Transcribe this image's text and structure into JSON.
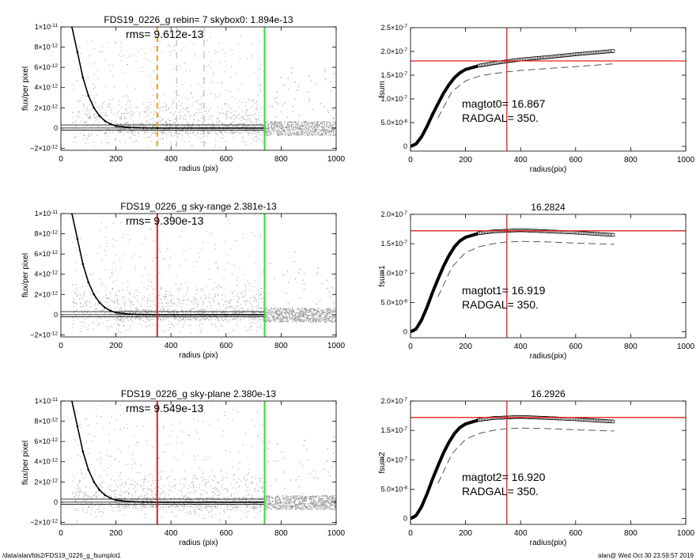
{
  "footer": {
    "left": "/data/alan/fds2/FDS19_0226_g_fsumplot1",
    "right": "alan@  Wed Oct 30 23:59:57 2019"
  },
  "colors": {
    "scatter": "#999999",
    "profile": "#000000",
    "orange": "#ff9900",
    "green": "#33dd33",
    "red": "#dd2222",
    "dashed": "#555555"
  },
  "chart_data": [
    {
      "id": "flux-0",
      "type": "scatter",
      "title": "FDS19_0226_g rebin= 7    skybox0:  1.894e-13",
      "annotation": "rms= 9.612e-13",
      "xlabel": "radius (pix)",
      "ylabel": "flux/per pixel",
      "xlim": [
        0,
        1000
      ],
      "ylim": [
        -2.2e-12,
        1e-11
      ],
      "xticks": [
        0,
        200,
        400,
        600,
        800,
        1000
      ],
      "xtick_labels": [
        "0",
        "200",
        "400",
        "600",
        "800",
        "1000"
      ],
      "yticks": [
        -2e-12,
        0,
        2e-12,
        4e-12,
        6e-12,
        8e-12,
        1e-11
      ],
      "ytick_labels": [
        {
          "m": "−2×10",
          "e": "-12"
        },
        {
          "m": "0",
          "e": ""
        },
        {
          "m": "2×10",
          "e": "-12"
        },
        {
          "m": "4×10",
          "e": "-12"
        },
        {
          "m": "6×10",
          "e": "-12"
        },
        {
          "m": "8×10",
          "e": "-12"
        },
        {
          "m": "1×10",
          "e": "-11"
        }
      ],
      "profile": [
        [
          40,
          1e-11
        ],
        [
          60,
          7.5e-12
        ],
        [
          80,
          5e-12
        ],
        [
          100,
          3.2e-12
        ],
        [
          120,
          2e-12
        ],
        [
          140,
          1.2e-12
        ],
        [
          160,
          7e-13
        ],
        [
          180,
          4e-13
        ],
        [
          200,
          2e-13
        ],
        [
          250,
          5e-14
        ],
        [
          300,
          1e-14
        ],
        [
          350,
          0
        ],
        [
          740,
          0
        ]
      ],
      "hlines": [
        0,
        3e-13,
        -2e-13
      ],
      "vlines": [
        {
          "x": 350,
          "color": "orange",
          "dashed": true
        },
        {
          "x": 740,
          "color": "green",
          "dashed": false
        }
      ],
      "gray_vlines": [
        420,
        520
      ]
    },
    {
      "id": "fsum-0",
      "type": "line",
      "title": "",
      "annotation_lines": [
        "magtot0=  16.867",
        "RADGAL=    350."
      ],
      "xlabel": "radius(pix)",
      "ylabel": "fsum",
      "xlim": [
        0,
        1000
      ],
      "ylim": [
        -1e-08,
        2.5e-07
      ],
      "xticks": [
        0,
        200,
        400,
        600,
        800,
        1000
      ],
      "xtick_labels": [
        "0",
        "200",
        "400",
        "600",
        "800",
        "1000"
      ],
      "yticks": [
        0,
        5e-08,
        1e-07,
        1.5e-07,
        2e-07,
        2.5e-07
      ],
      "ytick_labels": [
        {
          "m": "0",
          "e": ""
        },
        {
          "m": "5.0×10",
          "e": "-8"
        },
        {
          "m": "1.0×10",
          "e": "-7"
        },
        {
          "m": "1.5×10",
          "e": "-7"
        },
        {
          "m": "2.0×10",
          "e": "-7"
        },
        {
          "m": "2.5×10",
          "e": "-7"
        }
      ],
      "curve": [
        [
          0,
          0
        ],
        [
          20,
          5e-09
        ],
        [
          40,
          2e-08
        ],
        [
          60,
          4.2e-08
        ],
        [
          80,
          6.7e-08
        ],
        [
          100,
          9e-08
        ],
        [
          120,
          1.12e-07
        ],
        [
          140,
          1.3e-07
        ],
        [
          160,
          1.45e-07
        ],
        [
          180,
          1.55e-07
        ],
        [
          200,
          1.62e-07
        ],
        [
          250,
          1.7e-07
        ],
        [
          300,
          1.75e-07
        ],
        [
          350,
          1.79e-07
        ],
        [
          400,
          1.83e-07
        ],
        [
          500,
          1.88e-07
        ],
        [
          600,
          1.94e-07
        ],
        [
          700,
          1.99e-07
        ],
        [
          740,
          2.01e-07
        ]
      ],
      "dashed": [
        [
          100,
          6e-08
        ],
        [
          150,
          1.15e-07
        ],
        [
          200,
          1.38e-07
        ],
        [
          250,
          1.48e-07
        ],
        [
          300,
          1.53e-07
        ],
        [
          350,
          1.57e-07
        ],
        [
          400,
          1.6e-07
        ],
        [
          500,
          1.64e-07
        ],
        [
          600,
          1.68e-07
        ],
        [
          740,
          1.74e-07
        ]
      ],
      "hline": 1.8e-07,
      "vline": 350
    },
    {
      "id": "flux-1",
      "type": "scatter",
      "title": "FDS19_0226_g sky-range  2.381e-13",
      "annotation": "rms= 9.390e-13",
      "xlabel": "radius (pix)",
      "ylabel": "flux/per pixel",
      "xlim": [
        0,
        1000
      ],
      "ylim": [
        -2.2e-12,
        1e-11
      ],
      "xticks": [
        0,
        200,
        400,
        600,
        800,
        1000
      ],
      "xtick_labels": [
        "0",
        "200",
        "400",
        "600",
        "800",
        "1000"
      ],
      "yticks": [
        -2e-12,
        0,
        2e-12,
        4e-12,
        6e-12,
        8e-12,
        1e-11
      ],
      "ytick_labels": [
        {
          "m": "−2×10",
          "e": "-12"
        },
        {
          "m": "0",
          "e": ""
        },
        {
          "m": "2×10",
          "e": "-12"
        },
        {
          "m": "4×10",
          "e": "-12"
        },
        {
          "m": "6×10",
          "e": "-12"
        },
        {
          "m": "8×10",
          "e": "-12"
        },
        {
          "m": "1×10",
          "e": "-11"
        }
      ],
      "profile": [
        [
          40,
          1e-11
        ],
        [
          60,
          7.5e-12
        ],
        [
          80,
          5e-12
        ],
        [
          100,
          3.2e-12
        ],
        [
          120,
          2e-12
        ],
        [
          140,
          1.2e-12
        ],
        [
          160,
          7e-13
        ],
        [
          180,
          4e-13
        ],
        [
          200,
          2e-13
        ],
        [
          250,
          5e-14
        ],
        [
          300,
          1e-14
        ],
        [
          350,
          0
        ],
        [
          740,
          0
        ]
      ],
      "hlines": [
        0,
        3e-13,
        -2e-13
      ],
      "vlines": [
        {
          "x": 350,
          "color": "red",
          "dashed": false
        },
        {
          "x": 740,
          "color": "green",
          "dashed": false
        }
      ],
      "gray_vlines": []
    },
    {
      "id": "fsum-1",
      "type": "line",
      "title": "16.2824",
      "annotation_lines": [
        "magtot1=  16.919",
        "RADGAL=    350."
      ],
      "xlabel": "radius(pix)",
      "ylabel": "fsum1",
      "xlim": [
        0,
        1000
      ],
      "ylim": [
        -1e-08,
        2e-07
      ],
      "xticks": [
        0,
        200,
        400,
        600,
        800,
        1000
      ],
      "xtick_labels": [
        "0",
        "200",
        "400",
        "600",
        "800",
        "1000"
      ],
      "yticks": [
        0,
        5e-08,
        1e-07,
        1.5e-07,
        2e-07
      ],
      "ytick_labels": [
        {
          "m": "0",
          "e": ""
        },
        {
          "m": "5.0×10",
          "e": "-8"
        },
        {
          "m": "1.0×10",
          "e": "-7"
        },
        {
          "m": "1.5×10",
          "e": "-7"
        },
        {
          "m": "2.0×10",
          "e": "-7"
        }
      ],
      "curve": [
        [
          0,
          0
        ],
        [
          20,
          5e-09
        ],
        [
          40,
          2e-08
        ],
        [
          60,
          4.2e-08
        ],
        [
          80,
          6.7e-08
        ],
        [
          100,
          9e-08
        ],
        [
          120,
          1.12e-07
        ],
        [
          140,
          1.3e-07
        ],
        [
          160,
          1.45e-07
        ],
        [
          180,
          1.55e-07
        ],
        [
          200,
          1.61e-07
        ],
        [
          250,
          1.68e-07
        ],
        [
          300,
          1.71e-07
        ],
        [
          350,
          1.72e-07
        ],
        [
          400,
          1.73e-07
        ],
        [
          500,
          1.71e-07
        ],
        [
          600,
          1.69e-07
        ],
        [
          700,
          1.66e-07
        ],
        [
          740,
          1.65e-07
        ]
      ],
      "dashed": [
        [
          100,
          6e-08
        ],
        [
          150,
          1.1e-07
        ],
        [
          200,
          1.35e-07
        ],
        [
          250,
          1.45e-07
        ],
        [
          300,
          1.5e-07
        ],
        [
          350,
          1.53e-07
        ],
        [
          400,
          1.54e-07
        ],
        [
          500,
          1.53e-07
        ],
        [
          600,
          1.51e-07
        ],
        [
          740,
          1.49e-07
        ]
      ],
      "hline": 1.72e-07,
      "vline": 350
    },
    {
      "id": "flux-2",
      "type": "scatter",
      "title": "FDS19_0226_g sky-plane  2.380e-13",
      "annotation": "rms= 9.549e-13",
      "xlabel": "radius (pix)",
      "ylabel": "flux/per pixel",
      "xlim": [
        0,
        1000
      ],
      "ylim": [
        -2.2e-12,
        1e-11
      ],
      "xticks": [
        0,
        200,
        400,
        600,
        800,
        1000
      ],
      "xtick_labels": [
        "0",
        "200",
        "400",
        "600",
        "800",
        "1000"
      ],
      "yticks": [
        -2e-12,
        0,
        2e-12,
        4e-12,
        6e-12,
        8e-12,
        1e-11
      ],
      "ytick_labels": [
        {
          "m": "−2×10",
          "e": "-12"
        },
        {
          "m": "0",
          "e": ""
        },
        {
          "m": "2×10",
          "e": "-12"
        },
        {
          "m": "4×10",
          "e": "-12"
        },
        {
          "m": "6×10",
          "e": "-12"
        },
        {
          "m": "8×10",
          "e": "-12"
        },
        {
          "m": "1×10",
          "e": "-11"
        }
      ],
      "profile": [
        [
          40,
          1e-11
        ],
        [
          60,
          7.5e-12
        ],
        [
          80,
          5e-12
        ],
        [
          100,
          3.2e-12
        ],
        [
          120,
          2e-12
        ],
        [
          140,
          1.2e-12
        ],
        [
          160,
          7e-13
        ],
        [
          180,
          4e-13
        ],
        [
          200,
          2e-13
        ],
        [
          250,
          5e-14
        ],
        [
          300,
          1e-14
        ],
        [
          350,
          0
        ],
        [
          740,
          0
        ]
      ],
      "hlines": [
        0,
        3e-13,
        -2e-13
      ],
      "vlines": [
        {
          "x": 350,
          "color": "red",
          "dashed": false
        },
        {
          "x": 740,
          "color": "green",
          "dashed": false
        }
      ],
      "gray_vlines": []
    },
    {
      "id": "fsum-2",
      "type": "line",
      "title": "16.2926",
      "annotation_lines": [
        "magtot2=  16.920",
        "RADGAL=    350."
      ],
      "xlabel": "radius(pix)",
      "ylabel": "fsum2",
      "xlim": [
        0,
        1000
      ],
      "ylim": [
        -1e-08,
        2e-07
      ],
      "xticks": [
        0,
        200,
        400,
        600,
        800,
        1000
      ],
      "xtick_labels": [
        "0",
        "200",
        "400",
        "600",
        "800",
        "1000"
      ],
      "yticks": [
        0,
        5e-08,
        1e-07,
        1.5e-07,
        2e-07
      ],
      "ytick_labels": [
        {
          "m": "0",
          "e": ""
        },
        {
          "m": "5.0×10",
          "e": "-8"
        },
        {
          "m": "1.0×10",
          "e": "-7"
        },
        {
          "m": "1.5×10",
          "e": "-7"
        },
        {
          "m": "2.0×10",
          "e": "-7"
        }
      ],
      "curve": [
        [
          0,
          0
        ],
        [
          20,
          5e-09
        ],
        [
          40,
          2e-08
        ],
        [
          60,
          4.2e-08
        ],
        [
          80,
          6.7e-08
        ],
        [
          100,
          9e-08
        ],
        [
          120,
          1.12e-07
        ],
        [
          140,
          1.3e-07
        ],
        [
          160,
          1.45e-07
        ],
        [
          180,
          1.55e-07
        ],
        [
          200,
          1.61e-07
        ],
        [
          250,
          1.68e-07
        ],
        [
          300,
          1.71e-07
        ],
        [
          350,
          1.72e-07
        ],
        [
          400,
          1.73e-07
        ],
        [
          500,
          1.71e-07
        ],
        [
          600,
          1.69e-07
        ],
        [
          700,
          1.66e-07
        ],
        [
          740,
          1.65e-07
        ]
      ],
      "dashed": [
        [
          100,
          6e-08
        ],
        [
          150,
          1.1e-07
        ],
        [
          200,
          1.35e-07
        ],
        [
          250,
          1.45e-07
        ],
        [
          300,
          1.5e-07
        ],
        [
          350,
          1.53e-07
        ],
        [
          400,
          1.54e-07
        ],
        [
          500,
          1.53e-07
        ],
        [
          600,
          1.51e-07
        ],
        [
          740,
          1.49e-07
        ]
      ],
      "hline": 1.72e-07,
      "vline": 350
    }
  ]
}
